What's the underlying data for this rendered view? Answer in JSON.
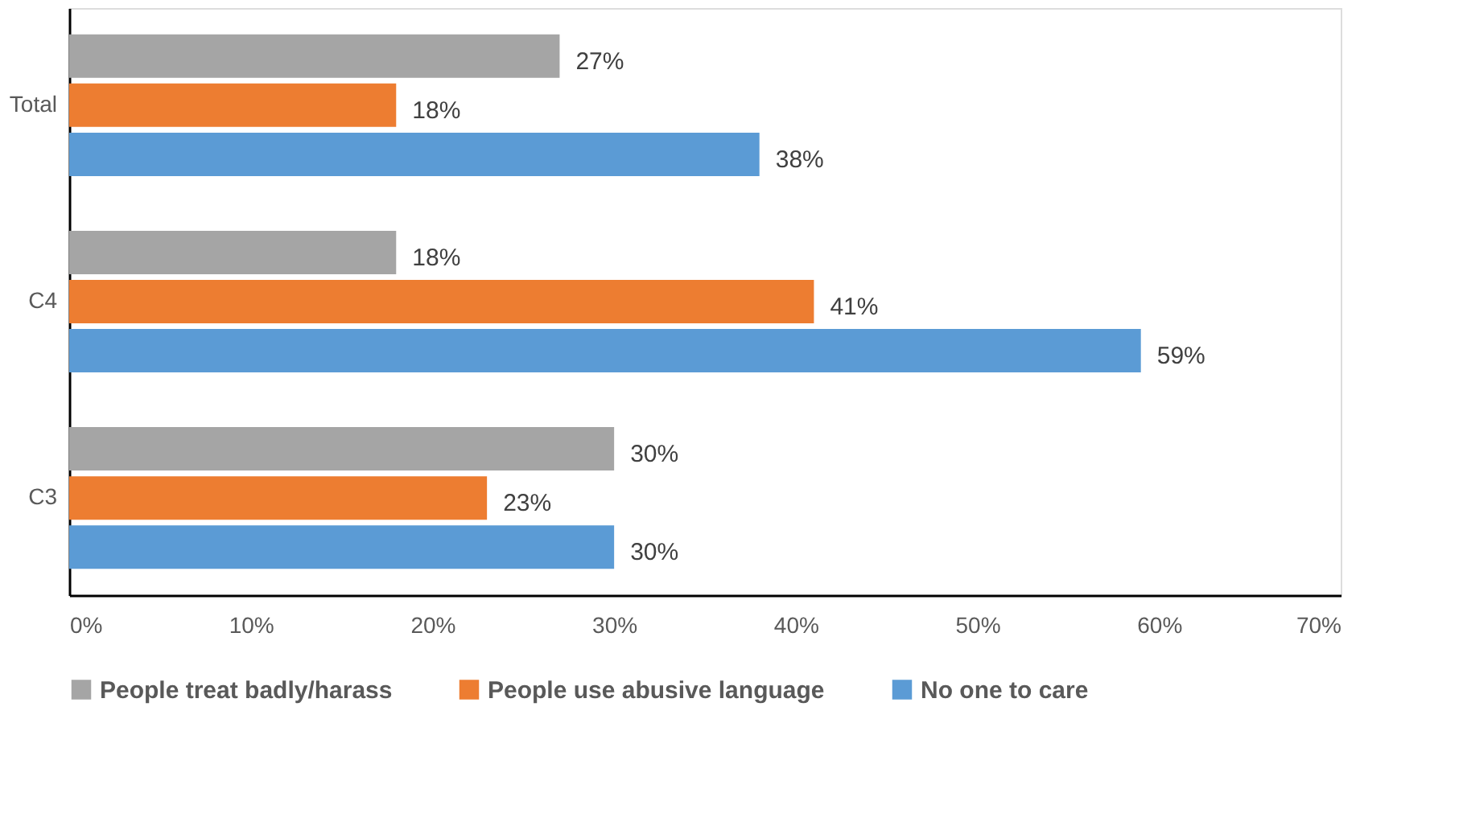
{
  "chart_data": {
    "type": "bar",
    "orientation": "horizontal",
    "categories": [
      "Total",
      "C4",
      "C3"
    ],
    "series": [
      {
        "name": "People treat badly/harass",
        "color": "#a5a5a5",
        "values": [
          27,
          18,
          30
        ],
        "value_labels": [
          "27%",
          "18%",
          "30%"
        ]
      },
      {
        "name": "People use abusive language",
        "color": "#ed7d31",
        "values": [
          18,
          41,
          23
        ],
        "value_labels": [
          "18%",
          "41%",
          "23%"
        ]
      },
      {
        "name": "No one to care",
        "color": "#5b9bd5",
        "values": [
          38,
          59,
          30
        ],
        "value_labels": [
          "38%",
          "59%",
          "30%"
        ]
      }
    ],
    "xlim": [
      0,
      70
    ],
    "xticks": [
      {
        "value": 0,
        "label": "0%"
      },
      {
        "value": 10,
        "label": "10%"
      },
      {
        "value": 20,
        "label": "20%"
      },
      {
        "value": 30,
        "label": "30%"
      },
      {
        "value": 40,
        "label": "40%"
      },
      {
        "value": 50,
        "label": "50%"
      },
      {
        "value": 60,
        "label": "60%"
      },
      {
        "value": 70,
        "label": "70%"
      }
    ],
    "grid": false,
    "legend": "bottom"
  }
}
